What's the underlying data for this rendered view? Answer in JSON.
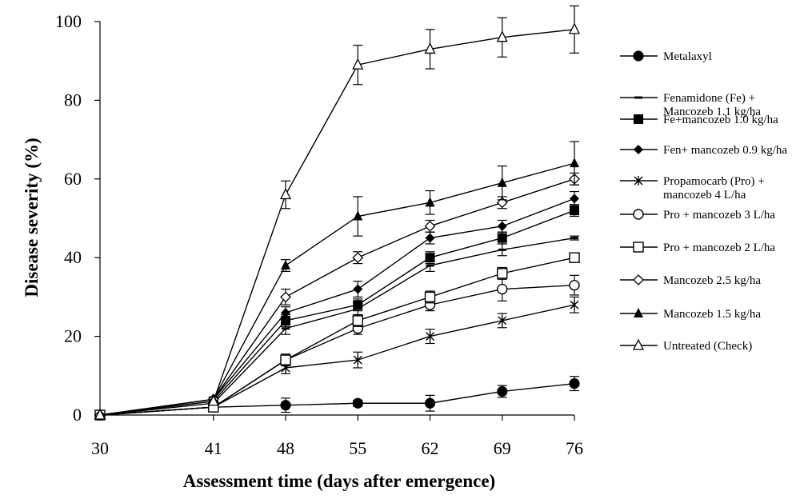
{
  "chart_data": {
    "type": "line",
    "title": "",
    "xlabel": "Assessment time (days after emergence)",
    "ylabel": "Disease severity (%)",
    "x": [
      30,
      41,
      48,
      55,
      62,
      69,
      76
    ],
    "xticks": [
      "30",
      "41",
      "48",
      "55",
      "62",
      "69",
      "76"
    ],
    "ylim": [
      0,
      100
    ],
    "yticks": [
      "0",
      "20",
      "40",
      "60",
      "80",
      "100"
    ],
    "grid": false,
    "legend_position": "right",
    "series": [
      {
        "name": "Metalaxyl",
        "marker": "filled-circle",
        "values": [
          0,
          2,
          2.5,
          3,
          3,
          6,
          8
        ],
        "errors": [
          0,
          0,
          1.8,
          0.8,
          2,
          1.5,
          1.8
        ]
      },
      {
        "name": "Fenamidone (Fe) +\nMancozeb 1.1 kg/ha",
        "marker": "dash",
        "values": [
          0,
          3,
          22,
          27,
          38,
          42,
          45
        ],
        "errors": [
          0,
          0,
          1.5,
          1.5,
          1.5,
          1.5,
          0.5
        ]
      },
      {
        "name": "Fe+mancozeb 1.0 kg/ha",
        "marker": "filled-square",
        "values": [
          0,
          3.5,
          24,
          28,
          40,
          45,
          52
        ],
        "errors": [
          0,
          0,
          1.5,
          1.5,
          1.5,
          1.5,
          1.5
        ]
      },
      {
        "name": "Fen+ mancozeb 0.9 kg/ha",
        "marker": "filled-diamond",
        "values": [
          0,
          4,
          26,
          32,
          45,
          48,
          55
        ],
        "errors": [
          0,
          0,
          1.5,
          2,
          1.5,
          1.5,
          1.8
        ]
      },
      {
        "name": "Propamocarb (Pro) +\nmancozeb 4 L/ha",
        "marker": "star",
        "values": [
          0,
          2,
          12,
          14,
          20,
          24,
          28
        ],
        "errors": [
          0,
          0,
          1.5,
          2,
          1.8,
          1.8,
          2
        ]
      },
      {
        "name": "Pro + mancozeb 3 L/ha",
        "marker": "open-circle",
        "values": [
          0,
          2,
          14,
          22,
          28,
          32,
          33
        ],
        "errors": [
          0,
          0,
          1.5,
          1.5,
          1.5,
          3,
          2.5
        ]
      },
      {
        "name": "Pro + mancozeb 2 L/ha",
        "marker": "open-square",
        "values": [
          0,
          2,
          14,
          24,
          30,
          36,
          40
        ],
        "errors": [
          0,
          0,
          1,
          1.5,
          1.5,
          1.5,
          1
        ]
      },
      {
        "name": "Mancozeb 2.5 kg/ha",
        "marker": "open-diamond",
        "values": [
          0,
          4,
          30,
          40,
          48,
          54,
          60
        ],
        "errors": [
          0,
          0,
          2,
          1.5,
          1.5,
          1.5,
          1.5
        ]
      },
      {
        "name": "Mancozeb 1.5 kg/ha",
        "marker": "filled-triangle",
        "values": [
          0,
          4,
          38,
          50.5,
          54,
          59,
          64
        ],
        "errors": [
          0,
          0,
          1.5,
          5,
          3,
          4.3,
          5.5
        ]
      },
      {
        "name": "Untreated (Check)",
        "marker": "open-triangle",
        "values": [
          0,
          3.5,
          56,
          89,
          93,
          96,
          98
        ],
        "errors": [
          0,
          0,
          3.5,
          5,
          5,
          5,
          6
        ]
      }
    ]
  }
}
